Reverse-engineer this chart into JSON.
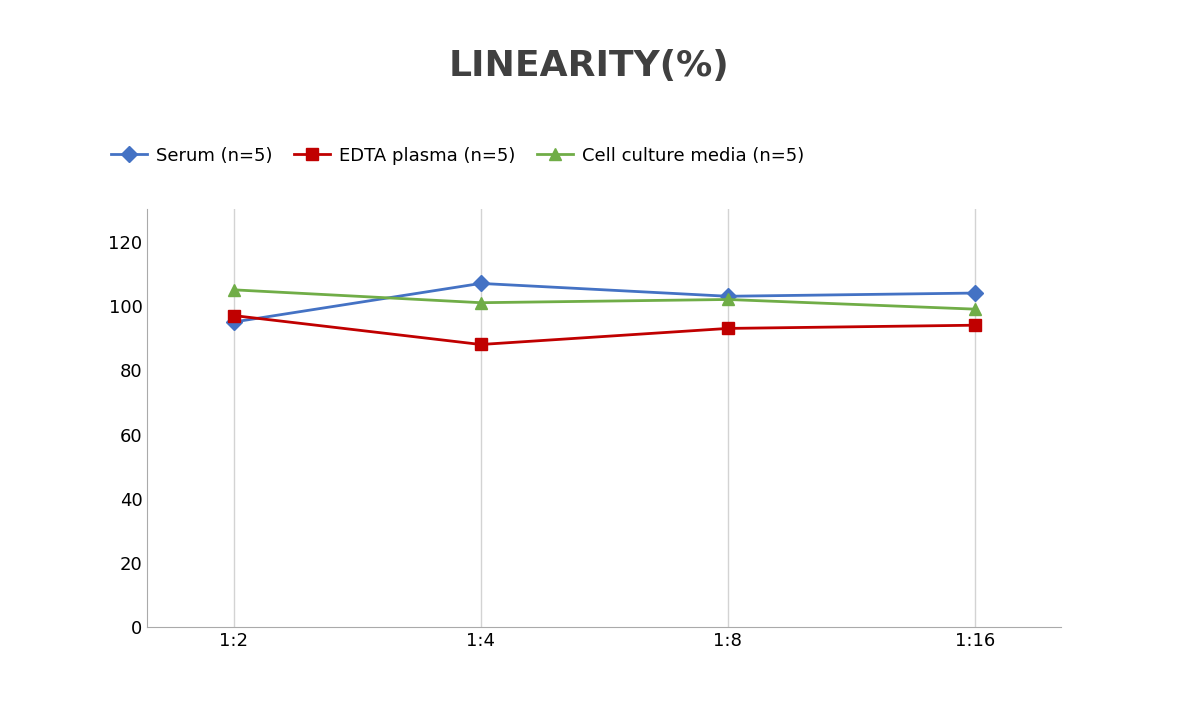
{
  "title": "LINEARITY(%)",
  "x_labels": [
    "1:2",
    "1:4",
    "1:8",
    "1:16"
  ],
  "x_positions": [
    0,
    1,
    2,
    3
  ],
  "series": [
    {
      "label": "Serum (n=5)",
      "values": [
        95,
        107,
        103,
        104
      ],
      "color": "#4472C4",
      "marker": "D",
      "markersize": 8,
      "linewidth": 2
    },
    {
      "label": "EDTA plasma (n=5)",
      "values": [
        97,
        88,
        93,
        94
      ],
      "color": "#C00000",
      "marker": "s",
      "markersize": 8,
      "linewidth": 2
    },
    {
      "label": "Cell culture media (n=5)",
      "values": [
        105,
        101,
        102,
        99
      ],
      "color": "#70AD47",
      "marker": "^",
      "markersize": 9,
      "linewidth": 2
    }
  ],
  "ylim": [
    0,
    130
  ],
  "yticks": [
    0,
    20,
    40,
    60,
    80,
    100,
    120
  ],
  "ylabel": "",
  "xlabel": "",
  "background_color": "#ffffff",
  "grid_color": "#d3d3d3",
  "title_fontsize": 26,
  "title_color": "#404040",
  "legend_fontsize": 13,
  "tick_fontsize": 13
}
